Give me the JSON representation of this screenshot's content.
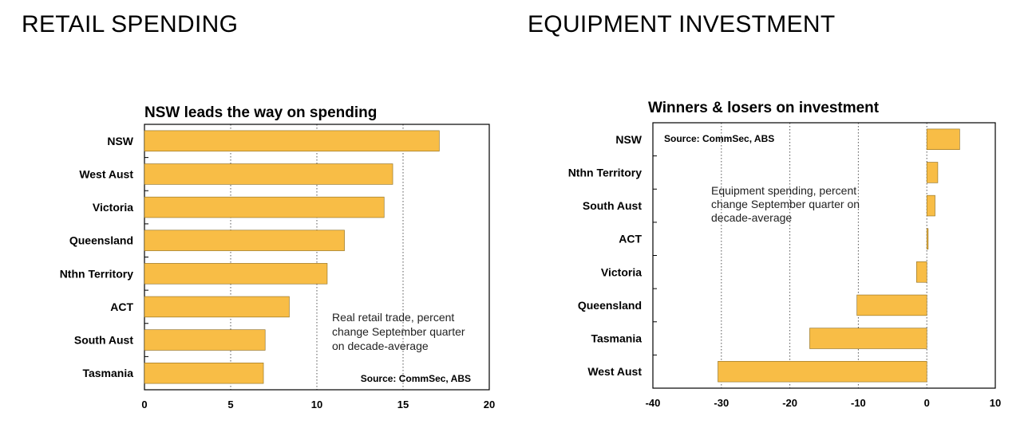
{
  "headings": {
    "left": "RETAIL SPENDING",
    "right": "EQUIPMENT INVESTMENT"
  },
  "colors": {
    "bar": "#F8BD46",
    "bar_stroke": "#8a6a1c",
    "frame": "#000000",
    "grid": "#555555"
  },
  "chart_data": [
    {
      "type": "bar",
      "orientation": "horizontal",
      "title": "NSW leads the way on spending",
      "categories": [
        "NSW",
        "West Aust",
        "Victoria",
        "Queensland",
        "Nthn Territory",
        "ACT",
        "South Aust",
        "Tasmania"
      ],
      "values": [
        17.1,
        14.4,
        13.9,
        11.6,
        10.6,
        8.4,
        7.0,
        6.9
      ],
      "xlim": [
        0,
        20
      ],
      "xticks": [
        0,
        5,
        10,
        15,
        20
      ],
      "grid": "vertical dotted",
      "note": [
        "Real retail trade, percent",
        "change September quarter",
        "on decade-average"
      ],
      "source": "Source: CommSec, ABS"
    },
    {
      "type": "bar",
      "orientation": "horizontal",
      "title": "Winners & losers on investment",
      "categories": [
        "NSW",
        "Nthn Territory",
        "South Aust",
        "ACT",
        "Victoria",
        "Queensland",
        "Tasmania",
        "West Aust"
      ],
      "values": [
        4.8,
        1.6,
        1.2,
        0.2,
        -1.5,
        -10.2,
        -17.1,
        -30.5
      ],
      "xlim": [
        -40,
        10
      ],
      "xticks": [
        -40,
        -30,
        -20,
        -10,
        0,
        10
      ],
      "grid": "vertical dotted",
      "note": [
        "Equipment spending, percent",
        "change September quarter on",
        "decade-average"
      ],
      "source": "Source: CommSec, ABS"
    }
  ]
}
